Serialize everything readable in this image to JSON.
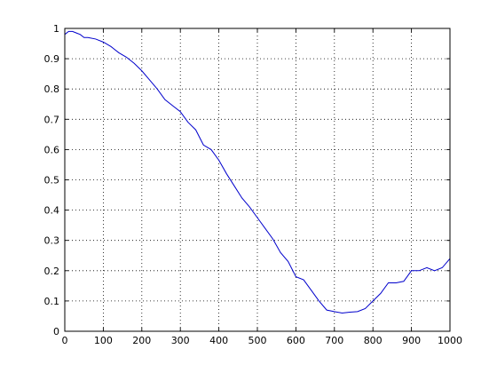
{
  "chart_data": {
    "type": "line",
    "title": "",
    "xlabel": "",
    "ylabel": "",
    "xlim": [
      0,
      1000
    ],
    "ylim": [
      0,
      1
    ],
    "grid": true,
    "xticks": [
      0,
      100,
      200,
      300,
      400,
      500,
      600,
      700,
      800,
      900,
      1000
    ],
    "yticks": [
      0,
      0.1,
      0.2,
      0.3,
      0.4,
      0.5,
      0.6,
      0.7,
      0.8,
      0.9,
      1
    ],
    "xtick_labels": [
      "0",
      "100",
      "200",
      "300",
      "400",
      "500",
      "600",
      "700",
      "800",
      "900",
      "1000"
    ],
    "ytick_labels": [
      "0",
      "0.1",
      "0.2",
      "0.3",
      "0.4",
      "0.5",
      "0.6",
      "0.7",
      "0.8",
      "0.9",
      "1"
    ],
    "series": [
      {
        "color": "#0000cc",
        "x": [
          0,
          10,
          20,
          30,
          40,
          50,
          60,
          80,
          100,
          120,
          140,
          160,
          180,
          200,
          220,
          240,
          260,
          280,
          300,
          320,
          340,
          360,
          380,
          400,
          420,
          440,
          460,
          480,
          500,
          520,
          540,
          560,
          580,
          600,
          620,
          640,
          660,
          680,
          700,
          720,
          740,
          760,
          780,
          800,
          820,
          840,
          860,
          880,
          900,
          920,
          940,
          960,
          980,
          1000
        ],
        "y": [
          0.98,
          0.99,
          0.99,
          0.985,
          0.98,
          0.97,
          0.97,
          0.965,
          0.955,
          0.94,
          0.92,
          0.905,
          0.885,
          0.86,
          0.83,
          0.8,
          0.765,
          0.745,
          0.725,
          0.69,
          0.665,
          0.615,
          0.6,
          0.565,
          0.52,
          0.48,
          0.44,
          0.41,
          0.375,
          0.34,
          0.305,
          0.26,
          0.23,
          0.18,
          0.17,
          0.135,
          0.1,
          0.07,
          0.065,
          0.06,
          0.063,
          0.065,
          0.075,
          0.1,
          0.125,
          0.16,
          0.16,
          0.165,
          0.2,
          0.2,
          0.21,
          0.2,
          0.21,
          0.24
        ]
      }
    ]
  }
}
